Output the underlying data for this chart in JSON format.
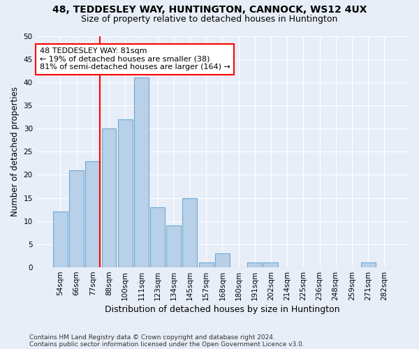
{
  "title1": "48, TEDDESLEY WAY, HUNTINGTON, CANNOCK, WS12 4UX",
  "title2": "Size of property relative to detached houses in Huntington",
  "xlabel": "Distribution of detached houses by size in Huntington",
  "ylabel": "Number of detached properties",
  "bar_labels": [
    "54sqm",
    "66sqm",
    "77sqm",
    "88sqm",
    "100sqm",
    "111sqm",
    "123sqm",
    "134sqm",
    "145sqm",
    "157sqm",
    "168sqm",
    "180sqm",
    "191sqm",
    "202sqm",
    "214sqm",
    "225sqm",
    "236sqm",
    "248sqm",
    "259sqm",
    "271sqm",
    "282sqm"
  ],
  "bar_values": [
    12,
    21,
    23,
    30,
    32,
    41,
    13,
    9,
    15,
    1,
    3,
    0,
    1,
    1,
    0,
    0,
    0,
    0,
    0,
    1,
    0
  ],
  "bar_color": "#b8d0e8",
  "bar_edge_color": "#6aaad4",
  "annotation_text": "48 TEDDESLEY WAY: 81sqm\n← 19% of detached houses are smaller (38)\n81% of semi-detached houses are larger (164) →",
  "annotation_box_color": "white",
  "annotation_box_edge_color": "red",
  "red_line_color": "red",
  "ylim": [
    0,
    50
  ],
  "yticks": [
    0,
    5,
    10,
    15,
    20,
    25,
    30,
    35,
    40,
    45,
    50
  ],
  "footnote1": "Contains HM Land Registry data © Crown copyright and database right 2024.",
  "footnote2": "Contains public sector information licensed under the Open Government Licence v3.0.",
  "background_color": "#e8eef8",
  "grid_color": "#ffffff",
  "title1_fontsize": 10,
  "title2_fontsize": 9,
  "xlabel_fontsize": 9,
  "ylabel_fontsize": 8.5,
  "tick_fontsize": 7.5,
  "annotation_fontsize": 8,
  "footnote_fontsize": 6.5
}
